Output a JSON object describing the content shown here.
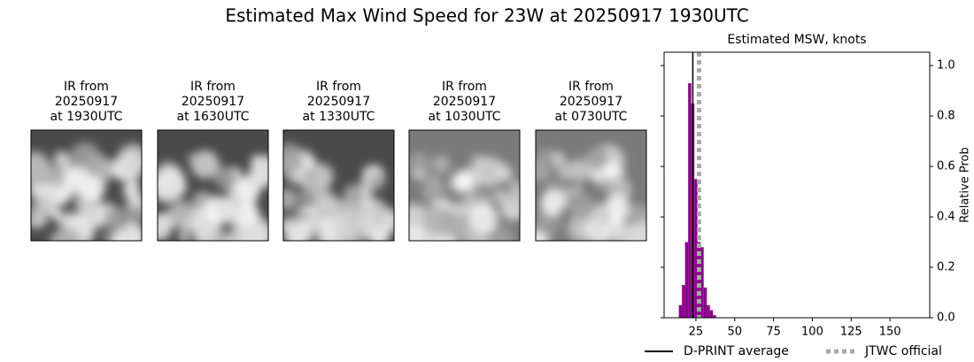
{
  "title": "Estimated Max Wind Speed for 23W at 20250917 1930UTC",
  "panels": [
    {
      "lines": [
        "IR from",
        "20250917",
        "at 1930UTC"
      ]
    },
    {
      "lines": [
        "IR from",
        "20250917",
        "at 1630UTC"
      ]
    },
    {
      "lines": [
        "IR from",
        "20250917",
        "at 1330UTC"
      ]
    },
    {
      "lines": [
        "IR from",
        "20250917",
        "at 1030UTC"
      ]
    },
    {
      "lines": [
        "IR from",
        "20250917",
        "at 0730UTC"
      ]
    }
  ],
  "chart_data": {
    "type": "histogram",
    "title": "Estimated MSW, knots",
    "ylabel": "Relative Prob",
    "bins": [
      14,
      16,
      18,
      20,
      22,
      24,
      26,
      28,
      30,
      32,
      34,
      36,
      38
    ],
    "values": [
      0.05,
      0.13,
      0.3,
      0.93,
      0.85,
      0.55,
      0.3,
      0.28,
      0.12,
      0.05,
      0.03,
      0.01
    ],
    "color": "#8b008b",
    "reference_lines": [
      {
        "name": "D-PRINT average",
        "value": 23,
        "color": "#000000",
        "style": "solid"
      },
      {
        "name": "JTWC official",
        "value": 27,
        "color": "#aaaaaa",
        "style": "dotted"
      }
    ],
    "xlim": [
      4.5,
      175.6
    ],
    "xticks": [
      25,
      50,
      75,
      100,
      125,
      150
    ],
    "ylim": [
      0,
      1.053
    ],
    "yticks": [
      {
        "value": 0,
        "label": "0.0"
      },
      0.2,
      0.4,
      0.6,
      0.8,
      {
        "value": 1,
        "label": "1.0"
      }
    ]
  }
}
